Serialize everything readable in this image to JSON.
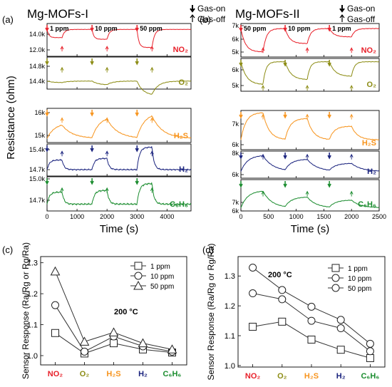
{
  "panels": {
    "a": {
      "tag": "(a)",
      "title": "Mg-MOFs-I",
      "ylabel": "Resistance (ohm)",
      "xlabel": "Time (s)",
      "x_ticks": [
        "0",
        "1000",
        "2000",
        "3000",
        "4000"
      ],
      "legend": {
        "on": "Gas-on",
        "off": "Gas-off"
      },
      "subplots": [
        {
          "gas": "NO₂",
          "color": "#e8202a",
          "y_ticks": [
            "14.0k",
            "12.0k"
          ],
          "labels": [
            "1 ppm",
            "10 ppm",
            "50 ppm"
          ]
        },
        {
          "gas": "O₂",
          "color": "#8c8c14",
          "y_ticks": [
            "14.8k",
            "14.4k"
          ]
        },
        {
          "gas": "H₂S",
          "color": "#f7941d",
          "y_ticks": [
            "16k",
            "15k"
          ]
        },
        {
          "gas": "H₂",
          "color": "#1a237e",
          "y_ticks": [
            "15.4k",
            "14.7k"
          ]
        },
        {
          "gas": "C₆H₆",
          "color": "#1a8c2e",
          "y_ticks": [
            "15.0k",
            "14.7k"
          ]
        }
      ]
    },
    "b": {
      "tag": "(b)",
      "title": "Mg-MOFs-II",
      "xlabel": "Time (s)",
      "x_ticks": [
        "0",
        "500",
        "1000",
        "1500",
        "2000",
        "2500"
      ],
      "legend": {
        "on": "Gas-on",
        "off": "Gas-off"
      },
      "subplots": [
        {
          "gas": "NO₂",
          "color": "#e8202a",
          "y_ticks": [
            "7k",
            "6k",
            "5k"
          ],
          "labels": [
            "50 ppm",
            "10 ppm",
            "1 ppm"
          ]
        },
        {
          "gas": "O₂",
          "color": "#8c8c14",
          "y_ticks": [
            "6k",
            "5k"
          ]
        },
        {
          "gas": "H₂S",
          "color": "#f7941d",
          "y_ticks": [
            "7k",
            "6k"
          ]
        },
        {
          "gas": "H₂",
          "color": "#1a237e",
          "y_ticks": [
            "8k",
            "6k"
          ]
        },
        {
          "gas": "C₆H₆",
          "color": "#1a8c2e",
          "y_ticks": [
            "7k",
            "6k"
          ]
        }
      ]
    },
    "c": {
      "tag": "(c)",
      "temp": "200 °C"
    },
    "d": {
      "tag": "(d)",
      "temp": "200 °C"
    }
  },
  "chart_data": [
    {
      "type": "line",
      "panel": "c",
      "ylabel": "Sensor Response (Ra/Rg or Rg/Ra)",
      "categories": [
        "NO₂",
        "O₂",
        "H₂S",
        "H₂",
        "C₆H₆"
      ],
      "category_colors": [
        "#e8202a",
        "#8c8c14",
        "#f7941d",
        "#1a237e",
        "#1a8c2e"
      ],
      "ylim": [
        0.97,
        1.32
      ],
      "y_ticks": [
        1.0,
        1.1,
        1.2,
        1.3
      ],
      "series": [
        {
          "name": "1 ppm",
          "marker": "square",
          "values": [
            1.073,
            1.007,
            1.04,
            1.02,
            1.01
          ]
        },
        {
          "name": "10 ppm",
          "marker": "circle",
          "values": [
            1.163,
            1.013,
            1.062,
            1.03,
            1.013
          ]
        },
        {
          "name": "50 ppm",
          "marker": "triangle",
          "values": [
            1.272,
            1.045,
            1.075,
            1.04,
            1.02
          ]
        }
      ],
      "legend": "top-right"
    },
    {
      "type": "line",
      "panel": "d",
      "ylabel": "Sensor Response (Ra/Rg or Rg/Ra)",
      "categories": [
        "NO₂",
        "O₂",
        "H₂S",
        "H₂",
        "C₆H₆"
      ],
      "category_colors": [
        "#e8202a",
        "#8c8c14",
        "#f7941d",
        "#1a237e",
        "#1a8c2e"
      ],
      "ylim": [
        0.995,
        1.365
      ],
      "y_ticks": [
        1.0,
        1.1,
        1.2,
        1.3
      ],
      "series": [
        {
          "name": "1 ppm",
          "marker": "square",
          "values": [
            1.13,
            1.147,
            1.087,
            1.053,
            1.025
          ]
        },
        {
          "name": "10 ppm",
          "marker": "circle",
          "values": [
            1.242,
            1.222,
            1.15,
            1.125,
            1.048
          ]
        },
        {
          "name": "50 ppm",
          "marker": "circle",
          "values": [
            1.328,
            1.253,
            1.197,
            1.153,
            1.073
          ]
        }
      ],
      "legend": "top-right"
    }
  ]
}
